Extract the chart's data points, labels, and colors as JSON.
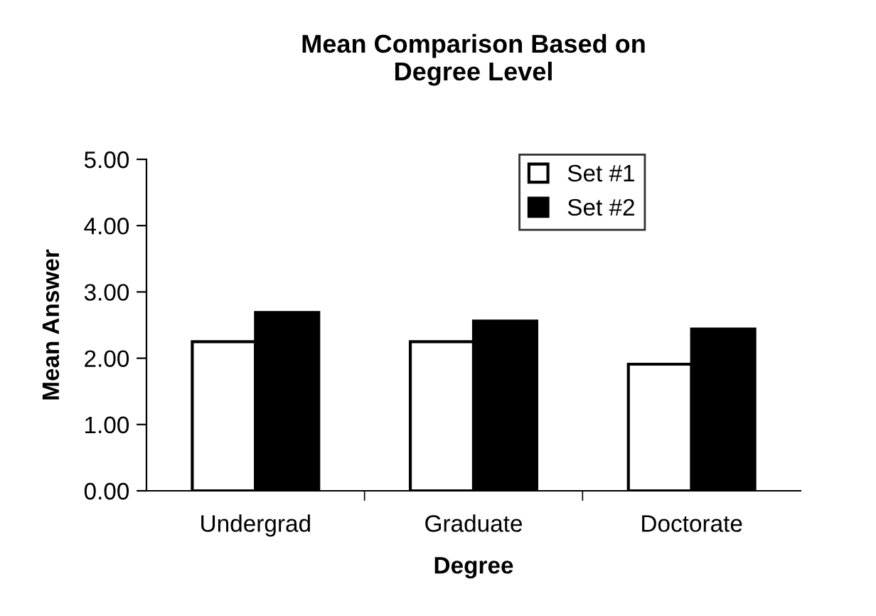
{
  "chart_data": {
    "type": "bar",
    "title": "Mean Comparison Based on\nDegree Level",
    "xlabel": "Degree",
    "ylabel": "Mean Answer",
    "categories": [
      "Undergrad",
      "Graduate",
      "Doctorate"
    ],
    "series": [
      {
        "name": "Set #1",
        "color": "#ffffff",
        "values": [
          2.25,
          2.25,
          1.91
        ]
      },
      {
        "name": "Set #2",
        "color": "#000000",
        "values": [
          2.69,
          2.56,
          2.44
        ]
      }
    ],
    "ylim": [
      0,
      5
    ],
    "yticks": [
      {
        "value": 0,
        "label": "0.00"
      },
      {
        "value": 1,
        "label": "1.00"
      },
      {
        "value": 2,
        "label": "2.00"
      },
      {
        "value": 3,
        "label": "3.00"
      },
      {
        "value": 4,
        "label": "4.00"
      },
      {
        "value": 5,
        "label": "5.00"
      }
    ],
    "grid": false,
    "legend": "top right"
  }
}
